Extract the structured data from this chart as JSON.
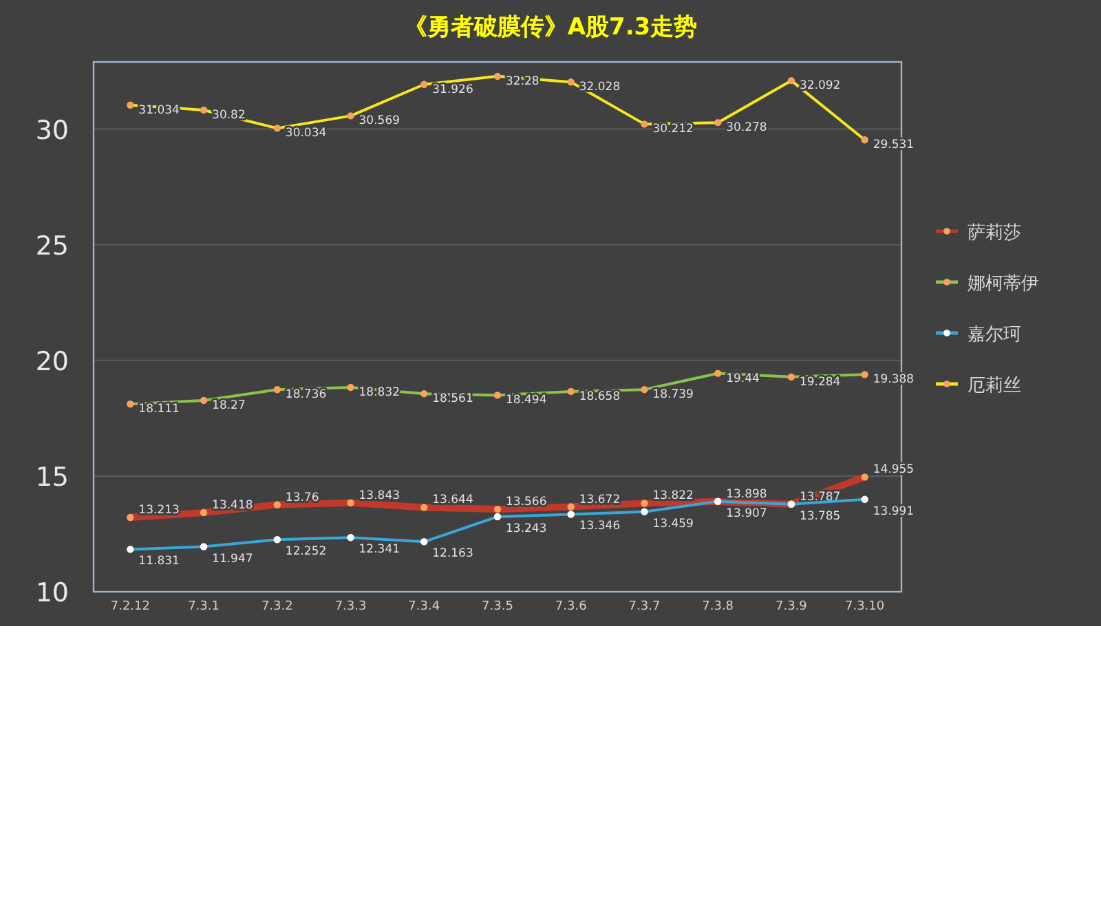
{
  "chart_data": {
    "type": "line",
    "title": "《勇者破膜传》A股7.3走势",
    "categories": [
      "7.2.12",
      "7.3.1",
      "7.3.2",
      "7.3.3",
      "7.3.4",
      "7.3.5",
      "7.3.6",
      "7.3.7",
      "7.3.8",
      "7.3.9",
      "7.3.10"
    ],
    "series": [
      {
        "name": "萨莉莎",
        "color": "#c0392b",
        "values": [
          13.213,
          13.418,
          13.76,
          13.843,
          13.644,
          13.566,
          13.672,
          13.822,
          13.898,
          13.787,
          14.955
        ]
      },
      {
        "name": "娜柯蒂伊",
        "color": "#8bc34a",
        "values": [
          18.111,
          18.27,
          18.736,
          18.832,
          18.561,
          18.494,
          18.658,
          18.739,
          19.44,
          19.284,
          19.388
        ]
      },
      {
        "name": "嘉尔珂",
        "color": "#3aa6d8",
        "values": [
          11.831,
          11.947,
          12.252,
          12.341,
          12.163,
          13.243,
          13.346,
          13.459,
          13.907,
          13.785,
          13.991
        ]
      },
      {
        "name": "厄莉丝",
        "color": "#f5e61e",
        "values": [
          31.034,
          30.82,
          30.034,
          30.569,
          31.926,
          32.28,
          32.028,
          30.212,
          30.278,
          32.092,
          29.531
        ]
      }
    ],
    "ylim": [
      10,
      32.9
    ],
    "yticks": [
      10,
      15,
      20,
      25,
      30
    ],
    "grid": "y",
    "legend": "right",
    "marker": "circle",
    "data_labels": true
  }
}
